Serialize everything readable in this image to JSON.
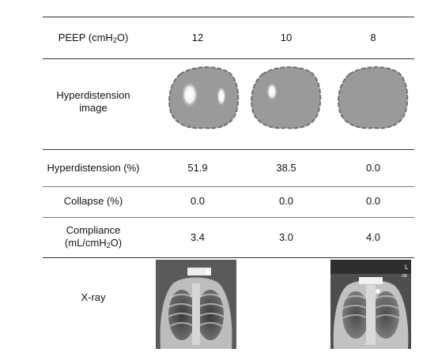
{
  "table": {
    "peep": {
      "label_main": "PEEP (cmH",
      "label_sub": "2",
      "label_end": "O)",
      "values": [
        "12",
        "10",
        "8"
      ]
    },
    "hyperdistension_image": {
      "label_line1": "Hyperdistension",
      "label_line2": "image",
      "hotspot_count": [
        2,
        1,
        0
      ]
    },
    "hyperdistension": {
      "label": "Hyperdistension (%)",
      "values": [
        "51.9",
        "38.5",
        "0.0"
      ]
    },
    "collapse": {
      "label": "Collapse (%)",
      "values": [
        "0.0",
        "0.0",
        "0.0"
      ]
    },
    "compliance": {
      "label_line1": "Compliance",
      "label_line2_main": "(mL/cmH",
      "label_line2_sub": "2",
      "label_line2_end": "O)",
      "values": [
        "3.4",
        "3.0",
        "4.0"
      ]
    },
    "xray": {
      "label": "X-ray",
      "panels": [
        "xray",
        "none",
        "xray"
      ],
      "marker_letters": [
        "L",
        "JM"
      ]
    }
  },
  "colors": {
    "lung_fill": "#9a9a9a",
    "lung_outline": "#6f6f6f",
    "hotspot": "#ffffff",
    "rule": "#333333"
  }
}
